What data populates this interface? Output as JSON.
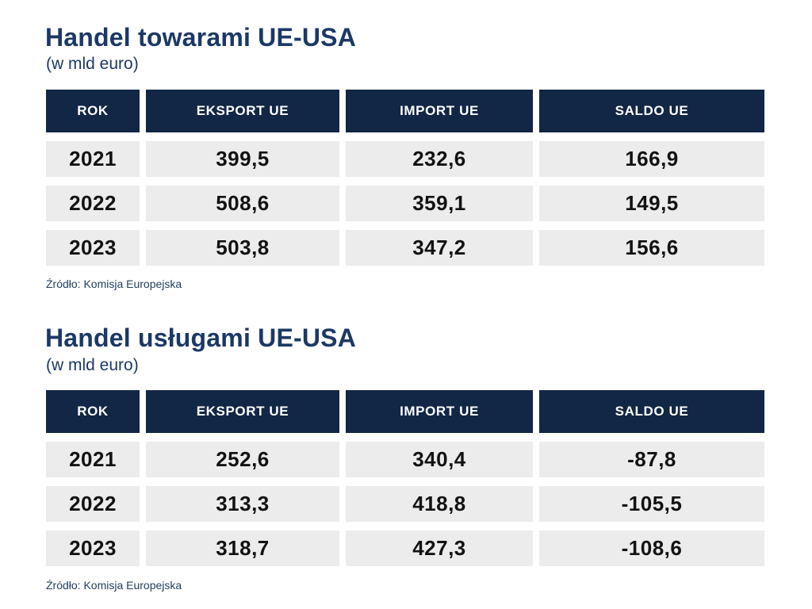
{
  "colors": {
    "background": "#FFFFFF",
    "header_bg": "#122645",
    "header_text": "#FFFFFF",
    "cell_bg": "#ECECEC",
    "cell_text": "#121212",
    "title_text": "#1B3866"
  },
  "sections": [
    {
      "title": "Handel towarami UE-USA",
      "subtitle": "(w mld euro)",
      "source": "Źródło: Komisja Europejska",
      "table": {
        "columns": [
          "ROK",
          "EKSPORT UE",
          "IMPORT UE",
          "SALDO UE"
        ],
        "rows": [
          [
            "2021",
            "399,5",
            "232,6",
            "166,9"
          ],
          [
            "2022",
            "508,6",
            "359,1",
            "149,5"
          ],
          [
            "2023",
            "503,8",
            "347,2",
            "156,6"
          ]
        ]
      }
    },
    {
      "title": "Handel usługami UE-USA",
      "subtitle": "(w mld euro)",
      "source": "Źródło: Komisja Europejska",
      "table": {
        "columns": [
          "ROK",
          "EKSPORT UE",
          "IMPORT UE",
          "SALDO UE"
        ],
        "rows": [
          [
            "2021",
            "252,6",
            "340,4",
            "-87,8"
          ],
          [
            "2022",
            "313,3",
            "418,8",
            "-105,5"
          ],
          [
            "2023",
            "318,7",
            "427,3",
            "-108,6"
          ]
        ]
      }
    }
  ],
  "chart_data": [
    {
      "type": "table",
      "title": "Handel towarami UE-USA",
      "subtitle": "(w mld euro)",
      "columns": [
        "ROK",
        "EKSPORT UE",
        "IMPORT UE",
        "SALDO UE"
      ],
      "rows": [
        [
          2021,
          399.5,
          232.6,
          166.9
        ],
        [
          2022,
          508.6,
          359.1,
          149.5
        ],
        [
          2023,
          503.8,
          347.2,
          156.6
        ]
      ],
      "source": "Źródło: Komisja Europejska"
    },
    {
      "type": "table",
      "title": "Handel usługami UE-USA",
      "subtitle": "(w mld euro)",
      "columns": [
        "ROK",
        "EKSPORT UE",
        "IMPORT UE",
        "SALDO UE"
      ],
      "rows": [
        [
          2021,
          252.6,
          340.4,
          -87.8
        ],
        [
          2022,
          313.3,
          418.8,
          -105.5
        ],
        [
          2023,
          318.7,
          427.3,
          -108.6
        ]
      ],
      "source": "Źródło: Komisja Europejska"
    }
  ]
}
